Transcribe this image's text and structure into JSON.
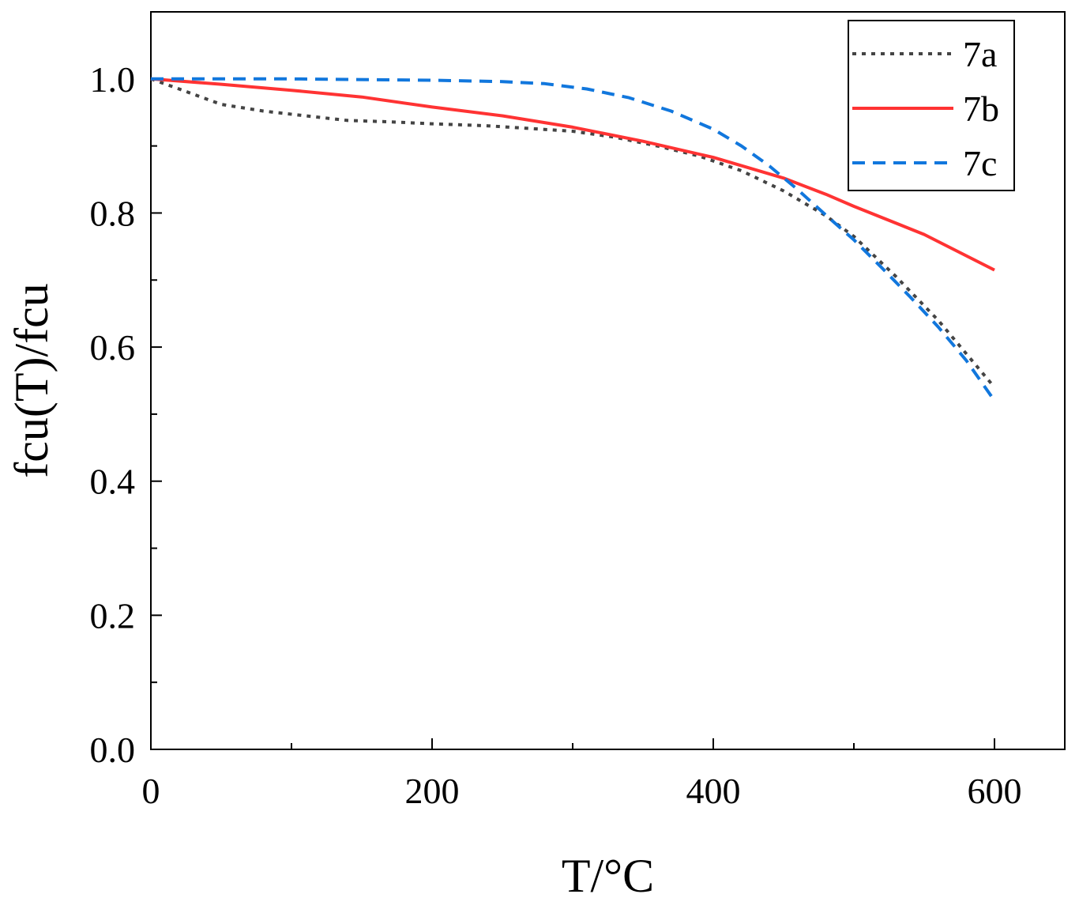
{
  "chart_data": {
    "type": "line",
    "title": "",
    "xlabel": "T/°C",
    "ylabel": "fcu(T)/fcu",
    "xlim": [
      0,
      650
    ],
    "ylim": [
      0,
      1.1
    ],
    "x_ticks": [
      0,
      200,
      400,
      600
    ],
    "x_tick_labels": [
      "0",
      "200",
      "400",
      "600"
    ],
    "x_minor_ticks": [
      100,
      300,
      500
    ],
    "y_ticks": [
      0.0,
      0.2,
      0.4,
      0.6,
      0.8,
      1.0
    ],
    "y_tick_labels": [
      "0.0",
      "0.2",
      "0.4",
      "0.6",
      "0.8",
      "1.0"
    ],
    "y_minor_ticks": [
      0.1,
      0.3,
      0.5,
      0.7,
      0.9
    ],
    "grid": false,
    "legend_position": "top-right",
    "series": [
      {
        "name": "7a",
        "color": "#444444",
        "style": "dotted",
        "x": [
          0,
          20,
          50,
          80,
          110,
          140,
          170,
          200,
          240,
          270,
          300,
          330,
          360,
          390,
          420,
          450,
          480,
          500,
          530,
          560,
          580,
          600
        ],
        "y": [
          1.0,
          0.985,
          0.962,
          0.952,
          0.945,
          0.938,
          0.936,
          0.933,
          0.93,
          0.926,
          0.922,
          0.913,
          0.9,
          0.885,
          0.863,
          0.833,
          0.796,
          0.765,
          0.705,
          0.64,
          0.59,
          0.54
        ]
      },
      {
        "name": "7b",
        "color": "#ff3333",
        "style": "solid",
        "x": [
          0,
          50,
          100,
          150,
          200,
          250,
          300,
          350,
          400,
          450,
          480,
          500,
          550,
          600
        ],
        "y": [
          1.0,
          0.992,
          0.983,
          0.973,
          0.958,
          0.945,
          0.928,
          0.907,
          0.883,
          0.852,
          0.828,
          0.81,
          0.768,
          0.715
        ]
      },
      {
        "name": "7c",
        "color": "#1177dd",
        "style": "dashed",
        "x": [
          0,
          100,
          200,
          250,
          280,
          310,
          340,
          370,
          400,
          420,
          440,
          460,
          480,
          500,
          520,
          540,
          560,
          580,
          600
        ],
        "y": [
          1.0,
          1.0,
          0.998,
          0.996,
          0.993,
          0.985,
          0.972,
          0.952,
          0.925,
          0.9,
          0.87,
          0.835,
          0.797,
          0.76,
          0.718,
          0.675,
          0.63,
          0.58,
          0.52
        ]
      }
    ]
  }
}
